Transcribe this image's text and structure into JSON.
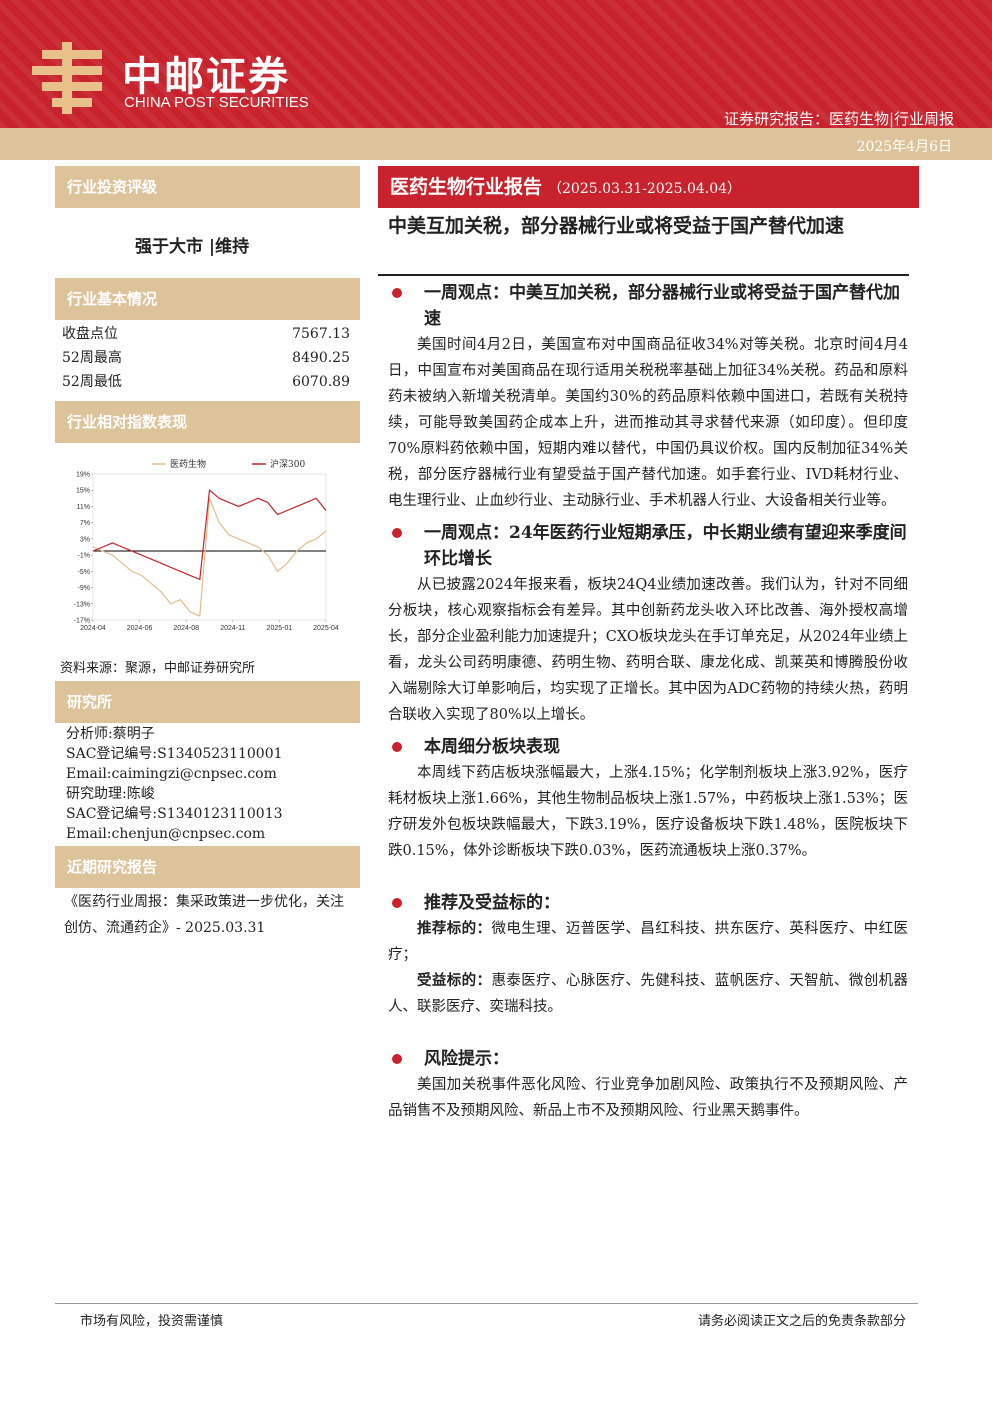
{
  "header": {
    "logo_cn": "中邮证券",
    "logo_en": "CHINA POST SECURITIES",
    "breadcrumb": "证券研究报告：医药生物|行业周报",
    "date": "2025年4月6日"
  },
  "sidebar": {
    "rating_title": "行业投资评级",
    "rating": "强于大市 |维持",
    "basics_title": "行业基本情况",
    "basics": [
      [
        "收盘点位",
        7567.13
      ],
      [
        "52周最高",
        8490.25
      ],
      [
        "52周最低",
        6070.89
      ]
    ],
    "index_title": "行业相对指数表现",
    "source": "资料来源：聚源，中邮证券研究所",
    "research_title": "研究所",
    "analysts": [
      "分析师:蔡明子",
      "SAC登记编号:S1340523110001",
      "Email:caimingzi@cnpsec.com",
      "研究助理:陈峻",
      "SAC登记编号:S1340123110013",
      "Email:chenjun@cnpsec.com"
    ],
    "recent_title": "近期研究报告",
    "recent": "《医药行业周报：集采政策进一步优化，关注创仿、流通药企》- 2025.03.31"
  },
  "chart_data": {
    "type": "line",
    "x": [
      0,
      0.5,
      1,
      1.5,
      2,
      2.5,
      3,
      3.5,
      4,
      4.5,
      5,
      5.5,
      6,
      6.5,
      7,
      7.5,
      8,
      8.5,
      9,
      9.5,
      10,
      10.5,
      11,
      11.5,
      12
    ],
    "series": [
      {
        "name": "医药生物",
        "color": "#e0bf8c",
        "values": [
          1,
          0,
          -1,
          -3,
          -5,
          -6,
          -8,
          -10,
          -13,
          -12,
          -15,
          -16,
          13,
          7,
          4,
          3,
          2,
          1,
          -1,
          -5,
          -3,
          0,
          2,
          3,
          5
        ]
      },
      {
        "name": "沪深300",
        "color": "#c8232c",
        "values": [
          0,
          1,
          2,
          1,
          0,
          -1,
          -2,
          -3,
          -4,
          -5,
          -6,
          -7,
          15,
          13,
          12,
          11,
          12,
          13,
          12,
          9,
          10,
          11,
          12,
          13,
          10
        ]
      }
    ],
    "xlim": [
      0,
      12
    ],
    "xticks": [
      {
        "value": 0,
        "label": "2024-04"
      },
      {
        "value": 2.4,
        "label": "2024-06"
      },
      {
        "value": 4.8,
        "label": "2024-08"
      },
      {
        "value": 7.2,
        "label": "2024-11"
      },
      {
        "value": 9.6,
        "label": "2025-01"
      },
      {
        "value": 12,
        "label": "2025-04"
      }
    ],
    "ylim": [
      -17,
      19
    ],
    "yticks": [
      {
        "value": 19,
        "label": "19%"
      },
      {
        "value": 15,
        "label": "15%"
      },
      {
        "value": 11,
        "label": "11%"
      },
      {
        "value": 7,
        "label": "7%"
      },
      {
        "value": 3,
        "label": "3%"
      },
      {
        "value": -1,
        "label": "-1%"
      },
      {
        "value": -5,
        "label": "-5%"
      },
      {
        "value": -9,
        "label": "-9%"
      },
      {
        "value": -13,
        "label": "-13%"
      },
      {
        "value": -17,
        "label": "-17%"
      }
    ]
  },
  "main": {
    "report_title": "医药生物行业报告",
    "period": "（2025.03.31-2025.04.04）",
    "headline": "中美互加关税，部分器械行业或将受益于国产替代加速",
    "sections": [
      {
        "heading": "一周观点：中美互加关税，部分器械行业或将受益于国产替代加速",
        "paragraphs": [
          {
            "text": "美国时间4月2日，美国宣布对中国商品征收34%对等关税。北京时间4月4日，中国宣布对美国商品在现行适用关税税率基础上加征34%关税。药品和原料药未被纳入新增关税清单。美国约30%的药品原料依赖中国进口，若既有关税持续，可能导致美国药企成本上升，进而推动其寻求替代来源（如印度）。但印度70%原料药依赖中国，短期内难以替代，中国仍具议价权。国内反制加征34%关税，部分医疗器械行业有望受益于国产替代加速。如手套行业、IVD耗材行业、电生理行业、止血纱行业、主动脉行业、手术机器人行业、大设备相关行业等。"
          }
        ]
      },
      {
        "heading": "一周观点：24年医药行业短期承压，中长期业绩有望迎来季度间环比增长",
        "paragraphs": [
          {
            "text": "从已披露2024年报来看，板块24Q4业绩加速改善。我们认为，针对不同细分板块，核心观察指标会有差异。其中创新药龙头收入环比改善、海外授权高增长，部分企业盈利能力加速提升；CXO板块龙头在手订单充足，从2024年业绩上看，龙头公司药明康德、药明生物、药明合联、康龙化成、凯莱英和博腾股份收入端剔除大订单影响后，均实现了正增长。其中因为ADC药物的持续火热，药明合联收入实现了80%以上增长。"
          }
        ]
      },
      {
        "heading": "本周细分板块表现",
        "paragraphs": [
          {
            "text": "本周线下药店板块涨幅最大，上涨4.15%；化学制剂板块上涨3.92%，医疗耗材板块上涨1.66%，其他生物制品板块上涨1.57%，中药板块上涨1.53%；医疗研发外包板块跌幅最大，下跌3.19%，医疗设备板块下跌1.48%，医院板块下跌0.15%，体外诊断板块下跌0.03%，医药流通板块上涨0.37%。"
          }
        ]
      },
      {
        "heading": "推荐及受益标的：",
        "paragraphs": [
          {
            "label": "推荐标的：",
            "text": "微电生理、迈普医学、昌红科技、拱东医疗、英科医疗、中红医疗；"
          },
          {
            "label": "受益标的：",
            "text": "惠泰医疗、心脉医疗、先健科技、蓝帆医疗、天智航、微创机器人、联影医疗、奕瑞科技。"
          }
        ]
      },
      {
        "heading": "风险提示：",
        "paragraphs": [
          {
            "text": "美国加关税事件恶化风险、行业竞争加剧风险、政策执行不及预期风险、产品销售不及预期风险、新品上市不及预期风险、行业黑天鹅事件。"
          }
        ]
      }
    ]
  },
  "footer": {
    "left": "市场有风险，投资需谨慎",
    "right": "请务必阅读正文之后的免责条款部分"
  }
}
